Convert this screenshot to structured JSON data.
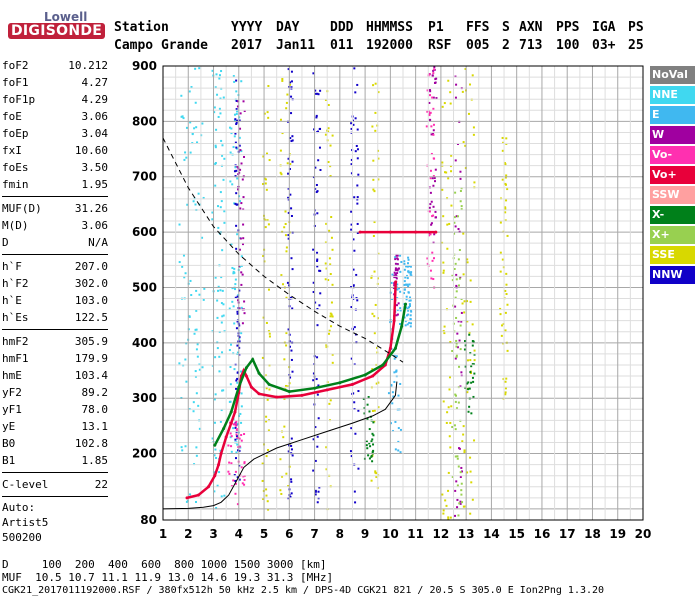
{
  "logo": {
    "line1": "Lowell",
    "line2": "DIGISONDE"
  },
  "header": {
    "labels": [
      "Station",
      "YYYY",
      "DAY",
      "DDD",
      "HHMMSS",
      "P1",
      "FFS",
      "S",
      "AXN",
      "PPS",
      "IGA",
      "PS"
    ],
    "values": [
      "Campo Grande",
      "2017",
      "Jan11",
      "011",
      "192000",
      "RSF",
      "005",
      "2",
      "713",
      "100",
      "03+",
      "25"
    ]
  },
  "params": {
    "g1": [
      {
        "k": "foF2",
        "v": "10.212"
      },
      {
        "k": "foF1",
        "v": "4.27"
      },
      {
        "k": "foF1p",
        "v": "4.29"
      },
      {
        "k": "foE",
        "v": "3.06"
      },
      {
        "k": "foEp",
        "v": "3.04"
      },
      {
        "k": "fxI",
        "v": "10.60"
      },
      {
        "k": "foEs",
        "v": "3.50"
      },
      {
        "k": "fmin",
        "v": "1.95"
      }
    ],
    "g2": [
      {
        "k": "MUF(D)",
        "v": "31.26"
      },
      {
        "k": "M(D)",
        "v": "3.06"
      },
      {
        "k": "D",
        "v": "N/A"
      }
    ],
    "g3": [
      {
        "k": "h`F",
        "v": "207.0"
      },
      {
        "k": "h`F2",
        "v": "302.0"
      },
      {
        "k": "h`E",
        "v": "103.0"
      },
      {
        "k": "h`Es",
        "v": "122.5"
      }
    ],
    "g4": [
      {
        "k": "hmF2",
        "v": "305.9"
      },
      {
        "k": "hmF1",
        "v": "179.9"
      },
      {
        "k": "hmE",
        "v": "103.4"
      },
      {
        "k": "yF2",
        "v": "89.2"
      },
      {
        "k": "yF1",
        "v": "78.0"
      },
      {
        "k": "yE",
        "v": "13.1"
      },
      {
        "k": "B0",
        "v": "102.8"
      },
      {
        "k": "B1",
        "v": "1.85"
      }
    ],
    "g5": [
      {
        "k": "C-level",
        "v": "22"
      }
    ],
    "auto1": "Auto:",
    "auto2": "Artist5",
    "auto3": "500200"
  },
  "legend": [
    {
      "label": "NoVal",
      "color": "#808080"
    },
    {
      "label": "NNE",
      "color": "#40d8f0"
    },
    {
      "label": "E",
      "color": "#40b8f0"
    },
    {
      "label": "W",
      "color": "#a000a0"
    },
    {
      "label": "Vo-",
      "color": "#ff30b0"
    },
    {
      "label": "Vo+",
      "color": "#e8003a"
    },
    {
      "label": "SSW",
      "color": "#ffa0a0"
    },
    {
      "label": "X-",
      "color": "#00801a"
    },
    {
      "label": "X+",
      "color": "#98d050"
    },
    {
      "label": "SSE",
      "color": "#d8d800"
    },
    {
      "label": "NNW",
      "color": "#1000c8"
    }
  ],
  "footer": {
    "line1": "D     100  200  400  600  800 1000 1500 3000 [km]",
    "line2": "MUF  10.5 10.7 11.1 11.9 13.0 14.6 19.3 31.3 [MHz]",
    "line3": "CGK21_2017011192000.RSF / 380fx512h 50 kHz 2.5 km / DPS-4D CGK21 821 / 20.5 S 305.0 E Ion2Png 1.3.20"
  },
  "chart_data": {
    "type": "scatter",
    "xlabel": "",
    "ylabel": "",
    "xlim": [
      1,
      20
    ],
    "ylim": [
      80,
      900
    ],
    "xticks": [
      1,
      2,
      3,
      4,
      5,
      6,
      7,
      8,
      9,
      10,
      11,
      12,
      13,
      14,
      15,
      16,
      17,
      18,
      19,
      20
    ],
    "yticks": [
      200,
      300,
      400,
      500,
      600,
      700,
      800,
      900
    ],
    "grid": true,
    "legend_position": "right",
    "series": [
      {
        "color": "#e8003a",
        "points": [
          [
            1.95,
            120
          ],
          [
            2.4,
            125
          ],
          [
            2.8,
            140
          ],
          [
            3.05,
            160
          ],
          [
            3.2,
            180
          ],
          [
            3.3,
            200
          ],
          [
            3.5,
            230
          ],
          [
            3.7,
            255
          ],
          [
            3.85,
            275
          ],
          [
            4.0,
            310
          ],
          [
            4.1,
            340
          ],
          [
            4.2,
            350
          ],
          [
            4.3,
            340
          ],
          [
            4.5,
            320
          ],
          [
            4.8,
            308
          ],
          [
            5.5,
            302
          ],
          [
            6.5,
            305
          ],
          [
            7.5,
            315
          ],
          [
            8.5,
            325
          ],
          [
            9.3,
            340
          ],
          [
            9.8,
            360
          ],
          [
            10.0,
            390
          ],
          [
            10.15,
            440
          ],
          [
            10.21,
            510
          ]
        ]
      },
      {
        "color": "#00801a",
        "points": [
          [
            3.05,
            215
          ],
          [
            3.4,
            245
          ],
          [
            3.7,
            275
          ],
          [
            4.0,
            320
          ],
          [
            4.3,
            355
          ],
          [
            4.55,
            370
          ],
          [
            4.8,
            345
          ],
          [
            5.2,
            325
          ],
          [
            6.0,
            312
          ],
          [
            7.0,
            318
          ],
          [
            8.0,
            328
          ],
          [
            9.0,
            342
          ],
          [
            9.7,
            360
          ],
          [
            10.2,
            390
          ],
          [
            10.45,
            430
          ],
          [
            10.6,
            470
          ]
        ]
      },
      {
        "color": "#000000",
        "points": [
          [
            1.0,
            100
          ],
          [
            2.0,
            101
          ],
          [
            2.6,
            103
          ],
          [
            3.0,
            106
          ],
          [
            3.3,
            112
          ],
          [
            3.6,
            125
          ],
          [
            3.9,
            150
          ],
          [
            4.2,
            175
          ],
          [
            4.6,
            190
          ],
          [
            5.5,
            210
          ],
          [
            6.5,
            225
          ],
          [
            7.5,
            240
          ],
          [
            8.5,
            255
          ],
          [
            9.3,
            268
          ],
          [
            9.8,
            280
          ],
          [
            10.2,
            305
          ],
          [
            10.26,
            330
          ]
        ]
      },
      {
        "color": "#000000",
        "dashed": true,
        "points": [
          [
            1.0,
            770
          ],
          [
            2.0,
            680
          ],
          [
            3.0,
            610
          ],
          [
            4.0,
            560
          ],
          [
            5.0,
            520
          ],
          [
            6.0,
            487
          ],
          [
            7.0,
            457
          ],
          [
            8.0,
            430
          ],
          [
            9.0,
            408
          ],
          [
            10.0,
            380
          ],
          [
            10.5,
            365
          ]
        ]
      },
      {
        "color": "#e8003a",
        "points": [
          [
            8.8,
            600
          ],
          [
            10.0,
            600
          ],
          [
            11.0,
            600
          ],
          [
            11.8,
            600
          ]
        ]
      }
    ]
  }
}
